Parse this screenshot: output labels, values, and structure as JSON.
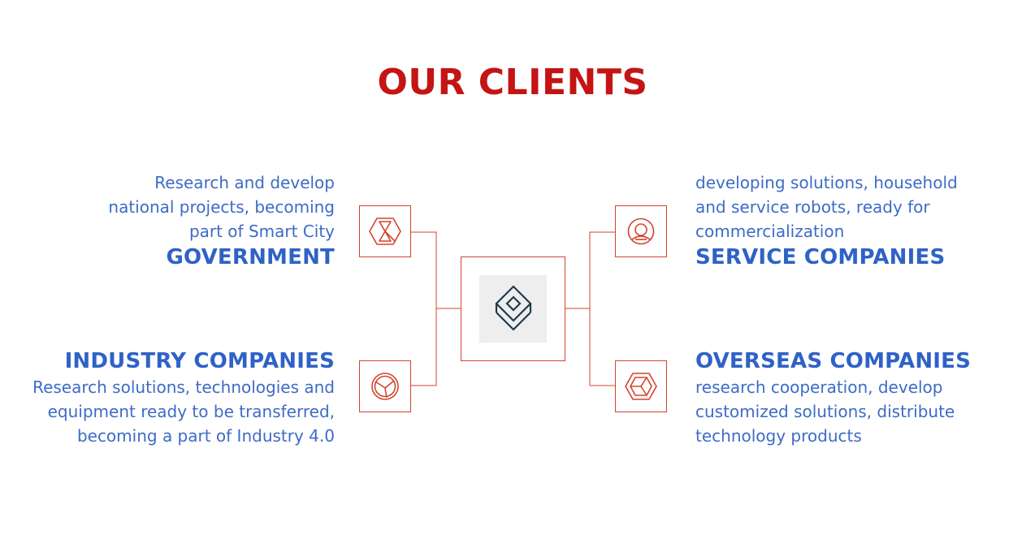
{
  "title": "OUR CLIENTS",
  "colors": {
    "title": "#c41414",
    "heading": "#2f62c7",
    "text": "#3d6bc7",
    "line": "#d2452e",
    "logo": "#1f3a4d"
  },
  "center": {
    "icon": "layered-diamond-logo-icon"
  },
  "clients": {
    "government": {
      "description": [
        "Research and develop",
        "national projects, becoming",
        "part of Smart City"
      ],
      "heading": "GOVERNMENT",
      "icon": "hexagon-hourglass-icon"
    },
    "service": {
      "description": [
        "developing solutions, household",
        "and service robots, ready for",
        "commercialization"
      ],
      "heading": "SERVICE COMPANIES",
      "icon": "robot-head-icon"
    },
    "industry": {
      "heading": "INDUSTRY COMPANIES",
      "description": [
        "Research solutions, technologies and",
        "equipment ready to be transferred,",
        "becoming a part of Industry 4.0"
      ],
      "icon": "aperture-circle-icon"
    },
    "overseas": {
      "heading": "OVERSEAS COMPANIES",
      "description": [
        "research cooperation, develop",
        "customized solutions, distribute",
        "technology products"
      ],
      "icon": "hexagon-cube-icon"
    }
  }
}
